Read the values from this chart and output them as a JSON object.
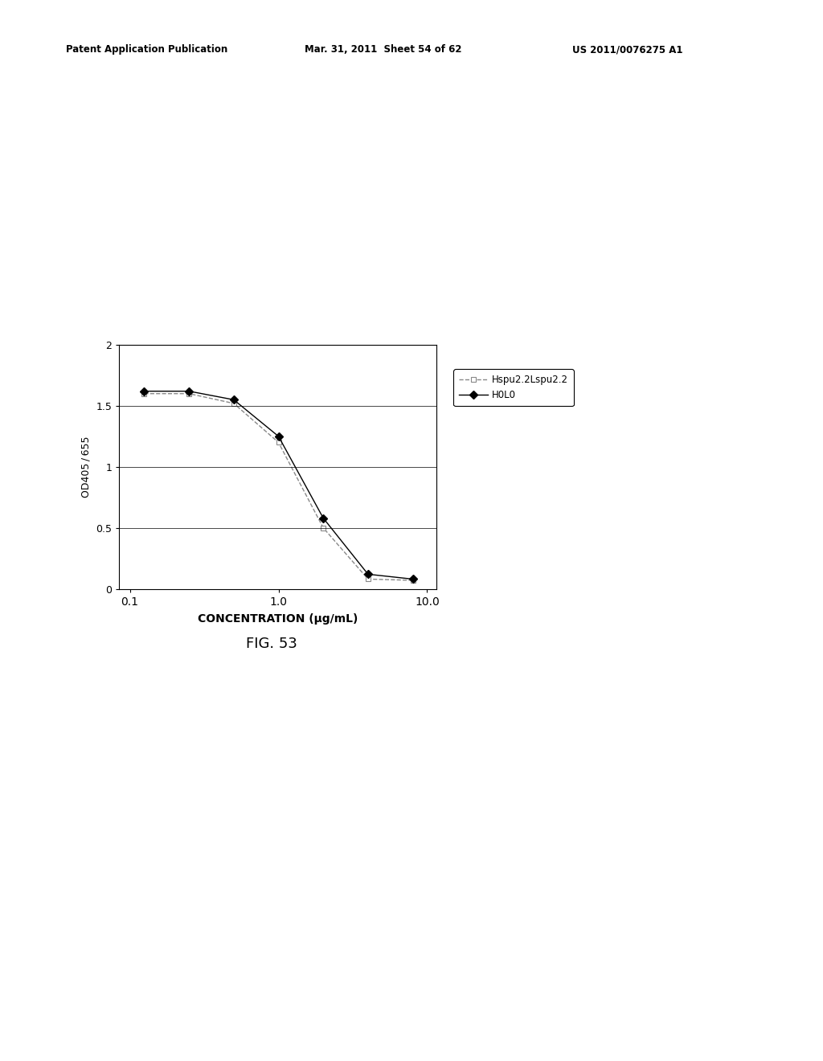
{
  "header_left": "Patent Application Publication",
  "header_mid": "Mar. 31, 2011  Sheet 54 of 62",
  "header_right": "US 2011/0076275 A1",
  "fig_label": "FIG. 53",
  "xlabel": "CONCENTRATION (μg/mL)",
  "ylabel": "OD405 / 655",
  "ylim": [
    0,
    2
  ],
  "yticks": [
    0,
    0.5,
    1,
    1.5,
    2
  ],
  "xtick_labels": [
    "0.1",
    "1.0",
    "10.0"
  ],
  "xtick_vals": [
    0.1,
    1.0,
    10.0
  ],
  "series1_name": "H0L0",
  "series1_x": [
    0.125,
    0.25,
    0.5,
    1.0,
    2.0,
    4.0,
    8.0
  ],
  "series1_y": [
    1.62,
    1.62,
    1.55,
    1.25,
    0.58,
    0.12,
    0.08
  ],
  "series1_color": "#000000",
  "series1_marker": "D",
  "series1_linestyle": "-",
  "series2_name": "Hspu2.2Lspu2.2",
  "series2_x": [
    0.125,
    0.25,
    0.5,
    1.0,
    2.0,
    4.0,
    8.0
  ],
  "series2_y": [
    1.6,
    1.6,
    1.52,
    1.2,
    0.5,
    0.08,
    0.07
  ],
  "series2_color": "#888888",
  "series2_marker": "s",
  "series2_linestyle": "--",
  "background_color": "#ffffff"
}
